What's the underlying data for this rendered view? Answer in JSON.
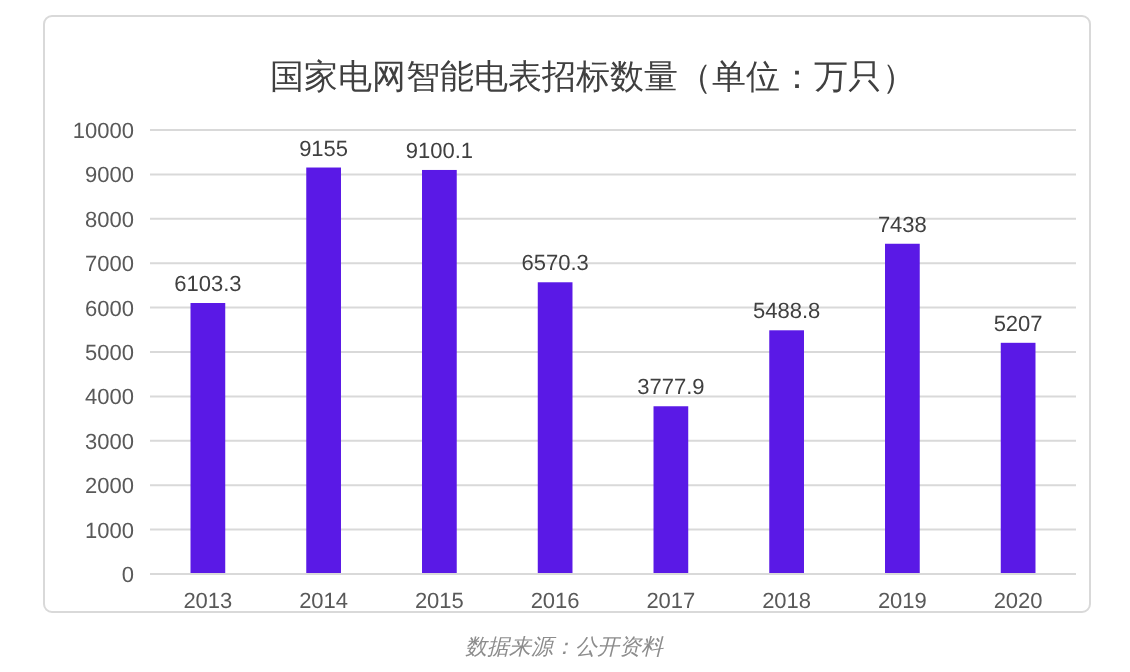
{
  "chart_data": {
    "type": "bar",
    "title": "国家电网智能电表招标数量（单位：万只）",
    "categories": [
      "2013",
      "2014",
      "2015",
      "2016",
      "2017",
      "2018",
      "2019",
      "2020"
    ],
    "values": [
      6103.3,
      9155,
      9100.1,
      6570.3,
      3777.9,
      5488.8,
      7438,
      5207
    ],
    "color": "#5a19e6",
    "ylim": [
      0,
      10000
    ],
    "yticks": [
      0,
      1000,
      2000,
      3000,
      4000,
      5000,
      6000,
      7000,
      8000,
      9000,
      10000
    ],
    "grid": "y",
    "data_labels": true,
    "annotations": [
      "数据来源：公开资料"
    ]
  }
}
